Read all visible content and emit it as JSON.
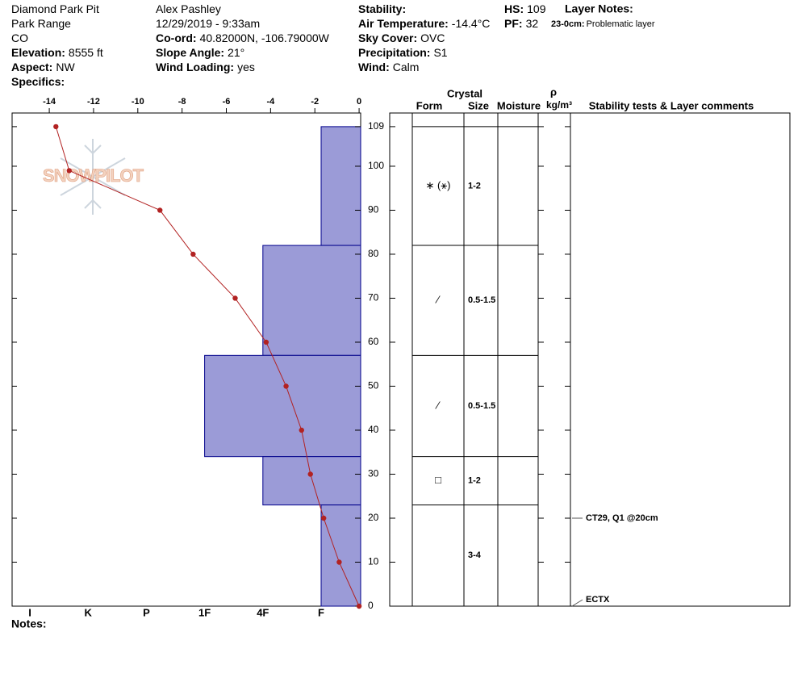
{
  "header": {
    "columns": [
      [
        {
          "value": "Diamond Park Pit"
        },
        {
          "value": "Park Range"
        },
        {
          "value": "CO"
        },
        {
          "label": "Elevation:",
          "value": "8555 ft"
        },
        {
          "label": "Aspect:",
          "value": "NW"
        },
        {
          "label": "Specifics:"
        }
      ],
      [
        {
          "value": "Alex Pashley"
        },
        {
          "value": "12/29/2019 - 9:33am"
        },
        {
          "label": "Co-ord:",
          "value": "40.82000N, -106.79000W"
        },
        {
          "label": "Slope Angle:",
          "value": "21°"
        },
        {
          "label": "Wind Loading:",
          "value": "yes"
        }
      ],
      [
        {
          "label": "Stability:"
        },
        {
          "label": "Air Temperature:",
          "value": "-14.4°C"
        },
        {
          "label": "Sky Cover:",
          "value": "OVC"
        },
        {
          "label": "Precipitation:",
          "value": "S1"
        },
        {
          "label": "Wind:",
          "value": "Calm"
        }
      ],
      [
        {
          "label": "HS:",
          "value": "109"
        },
        {
          "label": "PF:",
          "value": "32"
        }
      ]
    ],
    "layer_notes": {
      "title": "Layer Notes:",
      "items": [
        {
          "range": "23-0cm:",
          "text": "Problematic layer"
        }
      ]
    }
  },
  "chart_data": {
    "type": "snow-profile",
    "logo": "SNOWPILOT",
    "ylim": [
      0,
      112.1
    ],
    "yticks": [
      0,
      10,
      20,
      30,
      40,
      50,
      60,
      70,
      80,
      90,
      100,
      109
    ],
    "temperature": {
      "depths": [
        109,
        99,
        90,
        80,
        70,
        60,
        50,
        40,
        30,
        20,
        10,
        0
      ],
      "values": [
        -13.7,
        -13.1,
        -9.0,
        -7.5,
        -5.6,
        -4.2,
        -3.3,
        -2.6,
        -2.2,
        -1.6,
        -0.9,
        0
      ],
      "color": "#b22222",
      "xlim": [
        -15.68,
        0.07
      ],
      "xticks": [
        -14,
        -12,
        -10,
        -8,
        -6,
        -4,
        -2,
        0
      ]
    },
    "hardness_scale": [
      "I",
      "K",
      "P",
      "1F",
      "4F",
      "F"
    ],
    "layer_color": "#9b9bd7",
    "layers": [
      {
        "top": 109,
        "bottom": 82,
        "hardness": "F",
        "form": "∗ (⚹)",
        "size": "1-2"
      },
      {
        "top": 82,
        "bottom": 57,
        "hardness": "4F",
        "form": "⁄",
        "size": "0.5-1.5"
      },
      {
        "top": 57,
        "bottom": 34,
        "hardness": "1F",
        "form": "⁄",
        "size": "0.5-1.5"
      },
      {
        "top": 34,
        "bottom": 23,
        "hardness": "4F",
        "form": "□",
        "size": "1-2"
      },
      {
        "top": 23,
        "bottom": 0,
        "hardness": "F",
        "size": "3-4"
      }
    ],
    "columns": {
      "crystal": "Crystal",
      "form": "Form",
      "size": "Size",
      "moisture": "Moisture",
      "density": "ρ",
      "density_unit": "kg/m³",
      "comments": "Stability tests & Layer comments"
    },
    "tests": [
      {
        "depth": 20,
        "label": "CT29, Q1 @20cm"
      },
      {
        "depth": 0,
        "label": "ECTX"
      }
    ],
    "notes_label": "Notes:"
  }
}
